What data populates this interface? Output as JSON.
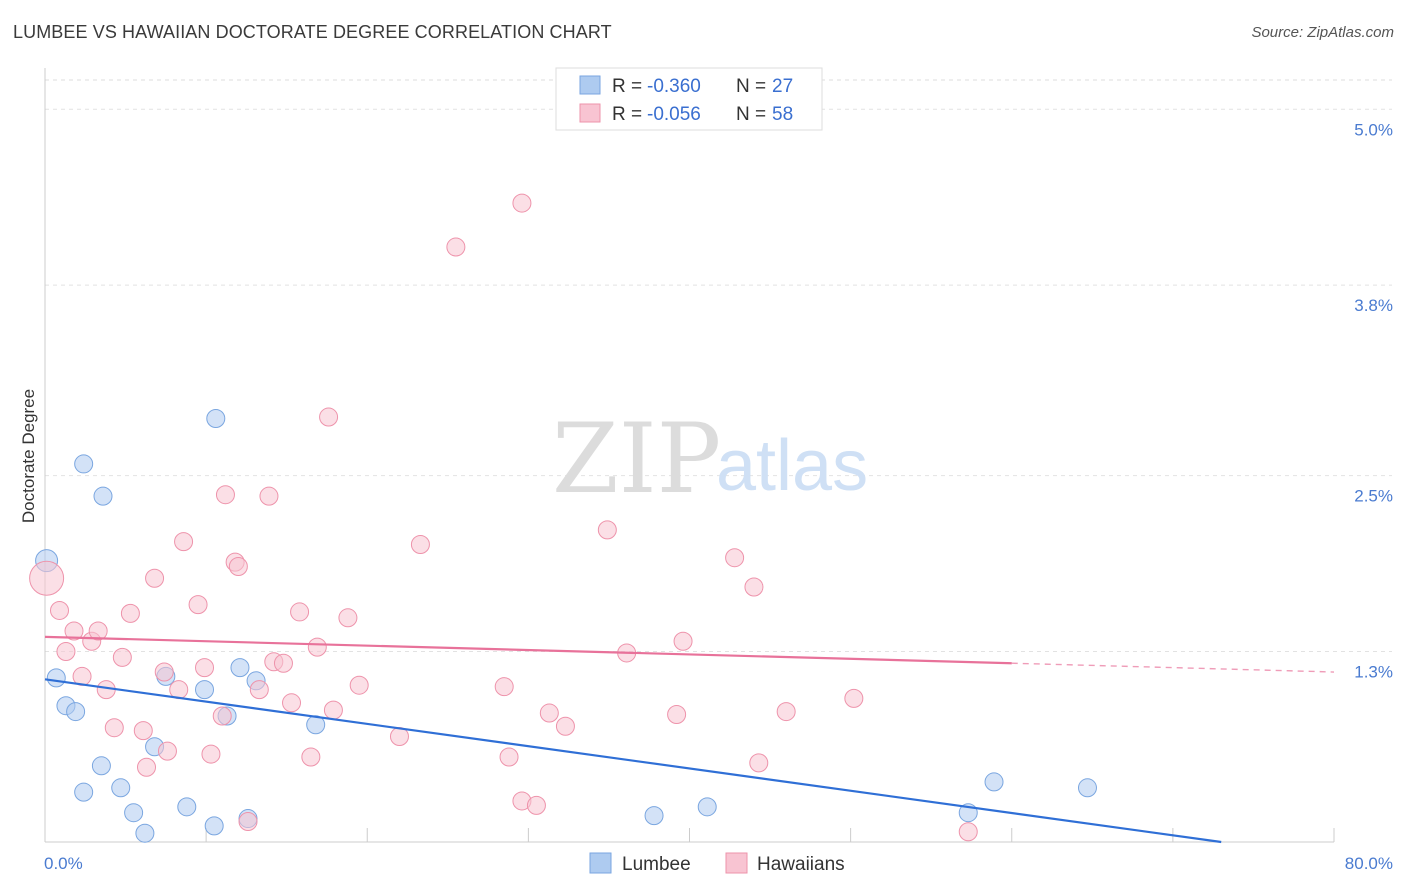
{
  "title": "LUMBEE VS HAWAIIAN DOCTORATE DEGREE CORRELATION CHART",
  "source": "Source: ZipAtlas.com",
  "watermark": {
    "zip": "ZIP",
    "atlas": "atlas"
  },
  "legend": {
    "rows": [
      {
        "r_label": "R = ",
        "r_value": "-0.360",
        "n_label": "N = ",
        "n_value": "27",
        "color": "#aecbf0",
        "stroke": "#7aa6e0"
      },
      {
        "r_label": "R = ",
        "r_value": "-0.056",
        "n_label": "N = ",
        "n_value": "58",
        "color": "#f8c4d2",
        "stroke": "#ee93ab"
      }
    ]
  },
  "bottom_legend": [
    {
      "label": "Lumbee",
      "color": "#aecbf0",
      "stroke": "#7aa6e0"
    },
    {
      "label": "Hawaiians",
      "color": "#f8c4d2",
      "stroke": "#ee93ab"
    }
  ],
  "chart_data": {
    "type": "scatter",
    "title": "LUMBEE VS HAWAIIAN DOCTORATE DEGREE CORRELATION CHART",
    "xlabel": "",
    "ylabel": "Doctorate Degree",
    "xlim": [
      0,
      80
    ],
    "ylim": [
      0,
      5.2
    ],
    "x_tick_labels": [
      "0.0%",
      "80.0%"
    ],
    "y_ticks": [
      {
        "value": 1.3,
        "label": "1.3%"
      },
      {
        "value": 2.5,
        "label": "2.5%"
      },
      {
        "value": 3.8,
        "label": "3.8%"
      },
      {
        "value": 5.0,
        "label": "5.0%"
      }
    ],
    "series": [
      {
        "name": "Lumbee",
        "color": "#aecbf0",
        "stroke": "#7aa6e0",
        "line_color": "#2f6fd6",
        "trend": {
          "x0": 0,
          "y0": 1.11,
          "x1": 73,
          "y1": 0.0,
          "dashed_to": null
        },
        "points": [
          [
            0.1,
            1.92,
            22
          ],
          [
            0.7,
            1.12,
            18
          ],
          [
            1.3,
            0.93,
            18
          ],
          [
            1.9,
            0.89,
            18
          ],
          [
            2.4,
            2.58,
            18
          ],
          [
            3.6,
            2.36,
            18
          ],
          [
            3.5,
            0.52,
            18
          ],
          [
            2.4,
            0.34,
            18
          ],
          [
            4.7,
            0.37,
            18
          ],
          [
            5.5,
            0.2,
            18
          ],
          [
            6.2,
            0.06,
            18
          ],
          [
            6.8,
            0.65,
            18
          ],
          [
            7.5,
            1.13,
            18
          ],
          [
            8.8,
            0.24,
            18
          ],
          [
            9.9,
            1.04,
            18
          ],
          [
            10.6,
            2.89,
            18
          ],
          [
            10.5,
            0.11,
            18
          ],
          [
            11.3,
            0.86,
            18
          ],
          [
            12.1,
            1.19,
            18
          ],
          [
            12.6,
            0.16,
            18
          ],
          [
            13.1,
            1.1,
            18
          ],
          [
            16.8,
            0.8,
            18
          ],
          [
            37.8,
            0.18,
            18
          ],
          [
            41.1,
            0.24,
            18
          ],
          [
            57.3,
            0.2,
            18
          ],
          [
            58.9,
            0.41,
            18
          ],
          [
            64.7,
            0.37,
            18
          ]
        ]
      },
      {
        "name": "Hawaiians",
        "color": "#f8c4d2",
        "stroke": "#ee93ab",
        "line_color": "#e8729a",
        "trend": {
          "x0": 0,
          "y0": 1.4,
          "x1": 60,
          "y1": 1.22,
          "dashed_to": {
            "x": 80,
            "y": 1.16
          }
        },
        "points": [
          [
            0.1,
            1.8,
            34
          ],
          [
            0.9,
            1.58,
            18
          ],
          [
            1.3,
            1.3,
            18
          ],
          [
            1.8,
            1.44,
            18
          ],
          [
            2.3,
            1.13,
            18
          ],
          [
            2.9,
            1.37,
            18
          ],
          [
            3.3,
            1.44,
            18
          ],
          [
            3.8,
            1.04,
            18
          ],
          [
            4.3,
            0.78,
            18
          ],
          [
            4.8,
            1.26,
            18
          ],
          [
            5.3,
            1.56,
            18
          ],
          [
            6.1,
            0.76,
            18
          ],
          [
            6.3,
            0.51,
            18
          ],
          [
            6.8,
            1.8,
            18
          ],
          [
            7.4,
            1.16,
            18
          ],
          [
            7.6,
            0.62,
            18
          ],
          [
            8.3,
            1.04,
            18
          ],
          [
            8.6,
            2.05,
            18
          ],
          [
            9.5,
            1.62,
            18
          ],
          [
            9.9,
            1.19,
            18
          ],
          [
            10.3,
            0.6,
            18
          ],
          [
            11.0,
            0.86,
            18
          ],
          [
            11.2,
            2.37,
            18
          ],
          [
            11.8,
            1.91,
            18
          ],
          [
            12.0,
            1.88,
            18
          ],
          [
            12.6,
            0.14,
            18
          ],
          [
            13.3,
            1.04,
            18
          ],
          [
            13.9,
            2.36,
            18
          ],
          [
            14.2,
            1.23,
            18
          ],
          [
            14.8,
            1.22,
            18
          ],
          [
            15.3,
            0.95,
            18
          ],
          [
            15.8,
            1.57,
            18
          ],
          [
            16.5,
            0.58,
            18
          ],
          [
            16.9,
            1.33,
            18
          ],
          [
            17.6,
            2.9,
            18
          ],
          [
            17.9,
            0.9,
            18
          ],
          [
            18.8,
            1.53,
            18
          ],
          [
            19.5,
            1.07,
            18
          ],
          [
            22.0,
            0.72,
            18
          ],
          [
            23.3,
            2.03,
            18
          ],
          [
            25.5,
            4.06,
            18
          ],
          [
            28.5,
            1.06,
            18
          ],
          [
            28.8,
            0.58,
            18
          ],
          [
            29.6,
            0.28,
            18
          ],
          [
            29.6,
            4.36,
            18
          ],
          [
            30.5,
            0.25,
            18
          ],
          [
            31.3,
            0.88,
            18
          ],
          [
            32.3,
            0.79,
            18
          ],
          [
            34.9,
            2.13,
            18
          ],
          [
            36.1,
            1.29,
            18
          ],
          [
            39.2,
            0.87,
            18
          ],
          [
            39.6,
            1.37,
            18
          ],
          [
            42.8,
            1.94,
            18
          ],
          [
            44.0,
            1.74,
            18
          ],
          [
            44.3,
            0.54,
            18
          ],
          [
            46.0,
            0.89,
            18
          ],
          [
            50.2,
            0.98,
            18
          ],
          [
            57.3,
            0.07,
            18
          ]
        ]
      }
    ]
  }
}
